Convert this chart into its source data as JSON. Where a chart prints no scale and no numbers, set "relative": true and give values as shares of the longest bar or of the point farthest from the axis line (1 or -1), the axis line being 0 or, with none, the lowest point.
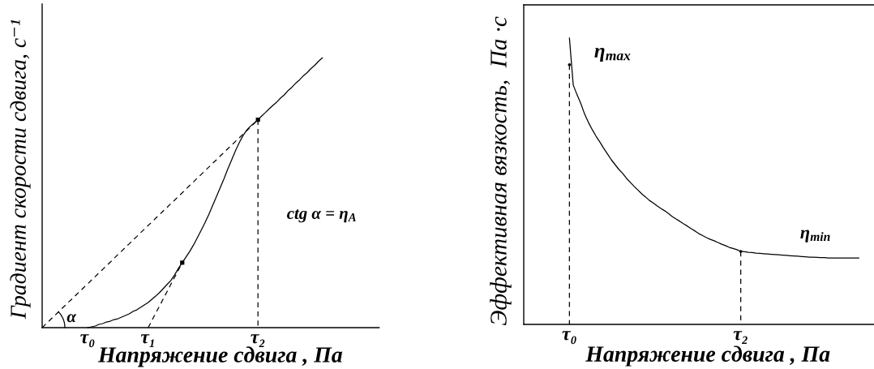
{
  "chart_data": [
    {
      "type": "line",
      "relative": true,
      "xlabel": "Напряжение сдвига , Па",
      "ylabel": "Градиент скорости сдвига, с⁻¹",
      "categories": [
        null,
        null,
        null,
        null,
        null,
        null,
        null,
        null,
        null,
        null,
        null,
        null,
        "τ₀",
        null,
        null,
        null,
        null,
        null,
        null,
        null,
        null,
        null,
        null,
        null,
        null,
        null,
        null,
        null,
        "τ₁",
        null,
        null,
        null,
        null,
        null,
        null,
        null,
        null,
        null,
        null,
        null,
        null,
        null,
        null,
        null,
        null,
        null,
        null,
        null,
        null,
        null,
        null,
        null,
        null,
        null,
        null,
        null,
        null,
        "τ₂",
        null,
        null,
        null,
        null,
        null,
        null,
        null,
        null,
        null,
        null,
        null,
        null,
        null,
        null,
        null,
        null,
        null,
        null,
        null,
        null,
        null,
        null,
        null,
        null,
        null,
        null,
        null,
        null,
        null,
        null,
        null,
        null
      ],
      "series": [
        {
          "color": "#000000",
          "line_style": "solid",
          "values": [
            null,
            null,
            null,
            null,
            null,
            null,
            null,
            null,
            null,
            null,
            null,
            null,
            0,
            0.003,
            0.006,
            0.012,
            0.015,
            0.021,
            0.024,
            0.03,
            0.033,
            0.039,
            0.045,
            0.051,
            0.06,
            0.066,
            0.075,
            0.084,
            0.093,
            0.105,
            0.117,
            0.13,
            0.145,
            0.16,
            0.175,
            0.196,
            0.22,
            0.241,
            0.262,
            0.283,
            0.307,
            0.334,
            0.361,
            0.389,
            0.419,
            0.452,
            0.485,
            0.518,
            0.551,
            0.587,
            0.62,
            0.654,
            0.684,
            0.711,
            0.732,
            0.747,
            0.759,
            0.771,
            0.785,
            0.798,
            0.812,
            0.825,
            0.837,
            0.852,
            0.864,
            0.88,
            0.892,
            0.907,
            0.919,
            0.934,
            0.946,
            0.961,
            0.973,
            0.988,
            1.0,
            null,
            null,
            null,
            null,
            null,
            null,
            null,
            null,
            null,
            null,
            null,
            null,
            null,
            null,
            null
          ]
        },
        {
          "color": "#000000",
          "line_style": "dashed",
          "values": [
            0,
            0.014,
            0.027,
            0.041,
            0.054,
            0.068,
            0.081,
            0.095,
            0.108,
            0.122,
            0.135,
            0.149,
            0.162,
            0.176,
            0.189,
            0.203,
            0.216,
            0.23,
            0.243,
            0.257,
            0.271,
            0.284,
            0.298,
            0.311,
            0.325,
            0.338,
            0.352,
            0.365,
            0.379,
            0.392,
            0.406,
            0.419,
            0.433,
            0.446,
            0.46,
            0.473,
            0.487,
            0.5,
            0.514,
            0.528,
            0.541,
            0.555,
            0.568,
            0.582,
            0.595,
            0.609,
            0.622,
            0.636,
            0.649,
            0.663,
            0.676,
            0.69,
            0.703,
            0.717,
            0.73,
            0.744,
            0.757,
            0.771,
            null,
            null,
            null,
            null,
            null,
            null,
            null,
            null,
            null,
            null,
            null,
            null,
            null,
            null,
            null,
            null,
            null,
            null,
            null,
            null,
            null,
            null,
            null,
            null,
            null,
            null,
            null,
            null,
            null,
            null,
            null,
            null
          ]
        },
        {
          "color": "#000000",
          "line_style": "dashed",
          "values": [
            null,
            null,
            null,
            null,
            null,
            null,
            null,
            null,
            null,
            null,
            null,
            null,
            null,
            null,
            null,
            null,
            null,
            null,
            null,
            null,
            null,
            null,
            null,
            null,
            null,
            null,
            null,
            null,
            0,
            0.027,
            0.054,
            0.08,
            0.107,
            0.134,
            0.161,
            0.187,
            0.214,
            0.241,
            null,
            null,
            null,
            null,
            null,
            null,
            null,
            null,
            null,
            null,
            null,
            null,
            null,
            null,
            null,
            null,
            null,
            null,
            null,
            null,
            null,
            null,
            null,
            null,
            null,
            null,
            null,
            null,
            null,
            null,
            null,
            null,
            null,
            null,
            null,
            null,
            null,
            null,
            null,
            null,
            null,
            null,
            null,
            null,
            null,
            null,
            null,
            null,
            null,
            null,
            null,
            null
          ]
        },
        {
          "type": "scatter",
          "color": "#000000",
          "marker": "square",
          "values": [
            null,
            null,
            null,
            null,
            null,
            null,
            null,
            null,
            null,
            null,
            null,
            null,
            null,
            null,
            null,
            null,
            null,
            null,
            null,
            null,
            null,
            null,
            null,
            null,
            null,
            null,
            null,
            null,
            null,
            null,
            null,
            null,
            null,
            null,
            null,
            null,
            null,
            0.241,
            null,
            null,
            null,
            null,
            null,
            null,
            null,
            null,
            null,
            null,
            null,
            null,
            null,
            null,
            null,
            null,
            null,
            null,
            null,
            null,
            null,
            null,
            null,
            null,
            null,
            null,
            null,
            null,
            null,
            null,
            null,
            null,
            null,
            null,
            null,
            null,
            null,
            null,
            null,
            null,
            null,
            null,
            null,
            null,
            null,
            null,
            null,
            null,
            null,
            null,
            null,
            null
          ]
        },
        {
          "type": "lollipop",
          "color": "#000000",
          "marker": "square",
          "line_style": "dashed",
          "values": [
            null,
            null,
            null,
            null,
            null,
            null,
            null,
            null,
            null,
            null,
            null,
            null,
            null,
            null,
            null,
            null,
            null,
            null,
            null,
            null,
            null,
            null,
            null,
            null,
            null,
            null,
            null,
            null,
            null,
            null,
            null,
            null,
            null,
            null,
            null,
            null,
            null,
            null,
            null,
            null,
            null,
            null,
            null,
            null,
            null,
            null,
            null,
            null,
            null,
            null,
            null,
            null,
            null,
            null,
            null,
            null,
            null,
            0.771,
            null,
            null,
            null,
            null,
            null,
            null,
            null,
            null,
            null,
            null,
            null,
            null,
            null,
            null,
            null,
            null,
            null,
            null,
            null,
            null,
            null,
            null,
            null,
            null,
            null,
            null,
            null,
            null,
            null,
            null,
            null,
            null
          ]
        }
      ],
      "annotations": [
        "α",
        "ctg α = η$_{A}$"
      ]
    },
    {
      "type": "line",
      "relative": true,
      "xlabel": "Напряжение сдвига , Па",
      "ylabel": "Эффективная вязкость,  Па ·с",
      "categories": [
        null,
        null,
        null,
        null,
        null,
        null,
        null,
        null,
        null,
        null,
        null,
        null,
        "τ₀",
        null,
        null,
        null,
        null,
        null,
        null,
        null,
        null,
        null,
        null,
        null,
        null,
        null,
        null,
        null,
        null,
        null,
        null,
        null,
        null,
        null,
        null,
        null,
        null,
        null,
        null,
        null,
        null,
        null,
        null,
        null,
        null,
        null,
        null,
        null,
        null,
        null,
        null,
        null,
        null,
        null,
        null,
        null,
        null,
        "τ₂",
        null,
        null,
        null,
        null,
        null,
        null,
        null,
        null,
        null,
        null,
        null,
        null,
        null,
        null,
        null,
        null,
        null,
        null,
        null,
        null,
        null,
        null,
        null,
        null,
        null,
        null,
        null,
        null,
        null,
        null,
        null,
        null,
        null,
        null,
        null
      ],
      "series": [
        {
          "color": "#000000",
          "line_style": "solid",
          "values": [
            null,
            null,
            null,
            null,
            null,
            null,
            null,
            null,
            null,
            null,
            null,
            null,
            1.0,
            0.836,
            0.802,
            0.771,
            0.734,
            0.705,
            0.68,
            0.657,
            0.637,
            0.615,
            0.595,
            0.575,
            0.558,
            0.541,
            0.527,
            0.51,
            0.496,
            0.482,
            0.469,
            0.456,
            0.445,
            0.433,
            0.424,
            0.414,
            0.405,
            0.397,
            0.387,
            0.377,
            0.368,
            0.36,
            0.351,
            0.343,
            0.334,
            0.326,
            0.317,
            0.31,
            0.303,
            0.297,
            0.292,
            0.286,
            0.28,
            0.275,
            0.269,
            0.265,
            0.261,
            0.255,
            0.254,
            0.252,
            0.251,
            0.249,
            0.248,
            0.247,
            0.246,
            0.245,
            0.244,
            0.243,
            0.242,
            0.241,
            0.24,
            0.239,
            0.238,
            0.237,
            0.236,
            0.235,
            0.235,
            0.234,
            0.233,
            0.233,
            0.232,
            0.232,
            0.232,
            0.232,
            0.232,
            0.232,
            0.232,
            0.232,
            0.232,
            null,
            null,
            null,
            null
          ]
        },
        {
          "type": "lollipop",
          "color": "#000000",
          "marker": "circle",
          "line_style": "dashed",
          "values": [
            null,
            null,
            null,
            null,
            null,
            null,
            null,
            null,
            null,
            null,
            null,
            null,
            0.907,
            null,
            null,
            null,
            null,
            null,
            null,
            null,
            null,
            null,
            null,
            null,
            null,
            null,
            null,
            null,
            null,
            null,
            null,
            null,
            null,
            null,
            null,
            null,
            null,
            null,
            null,
            null,
            null,
            null,
            null,
            null,
            null,
            null,
            null,
            null,
            null,
            null,
            null,
            null,
            null,
            null,
            null,
            null,
            null,
            0.255,
            null,
            null,
            null,
            null,
            null,
            null,
            null,
            null,
            null,
            null,
            null,
            null,
            null,
            null,
            null,
            null,
            null,
            null,
            null,
            null,
            null,
            null,
            null,
            null,
            null,
            null,
            null,
            null,
            null,
            null,
            null,
            null,
            null,
            null,
            null
          ]
        }
      ],
      "annotations": [
        "η$_{max}$",
        "η$_{min}$"
      ]
    }
  ]
}
